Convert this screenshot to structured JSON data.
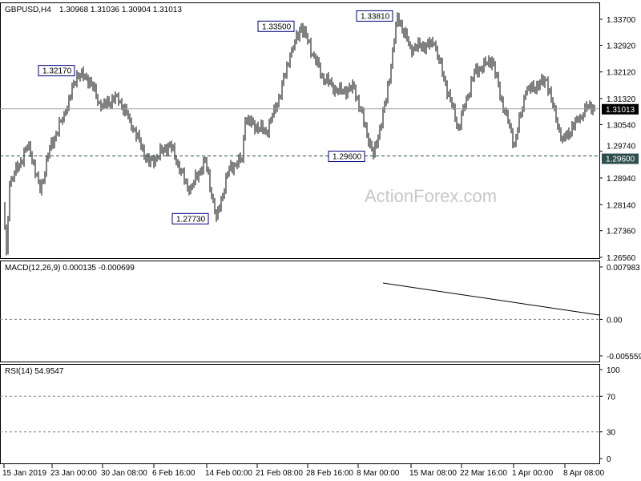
{
  "header": {
    "symbol": "GBPUSD,H4",
    "ohlc": "1.30968 1.31036 1.30904 1.31013"
  },
  "watermark": "ActionForex.com",
  "colors": {
    "bars": "#000000",
    "ma": "#ff0000",
    "macd": "#000080",
    "signal": "#a0a0a0",
    "rsi": "#1e90ff",
    "current_price_bg": "#000000",
    "level_bg": "#2f4f4f"
  },
  "chart_data": [
    {
      "type": "ohlc-bar",
      "panel": "price",
      "y_ticks": [
        "1.33700",
        "1.32920",
        "1.32120",
        "1.31320",
        "1.30540",
        "1.29740",
        "1.28940",
        "1.28140",
        "1.27360",
        "1.26560"
      ],
      "ylim": [
        1.2656,
        1.337
      ],
      "x_ticks": [
        "15 Jan 2019",
        "23 Jan 00:00",
        "30 Jan 08:00",
        "6 Feb 16:00",
        "14 Feb 00:00",
        "21 Feb 08:00",
        "28 Feb 16:00",
        "8 Mar 00:00",
        "15 Mar 08:00",
        "22 Mar 16:00",
        "1 Apr 00:00",
        "8 Apr 08:00"
      ],
      "swing_points_bar_price": [
        [
          1,
          1.2816
        ],
        [
          3,
          1.2672
        ],
        [
          5,
          1.2876
        ],
        [
          17,
          1.2996
        ],
        [
          24,
          1.2852
        ],
        [
          30,
          1.2984
        ],
        [
          40,
          1.3092
        ],
        [
          47,
          1.3207
        ],
        [
          55,
          1.3188
        ],
        [
          62,
          1.3104
        ],
        [
          72,
          1.314
        ],
        [
          80,
          1.3068
        ],
        [
          92,
          1.2936
        ],
        [
          105,
          1.2996
        ],
        [
          117,
          1.2852
        ],
        [
          127,
          1.2948
        ],
        [
          134,
          1.2773
        ],
        [
          142,
          1.2924
        ],
        [
          150,
          1.2948
        ],
        [
          152,
          1.3068
        ],
        [
          165,
          1.3032
        ],
        [
          172,
          1.3116
        ],
        [
          180,
          1.326
        ],
        [
          187,
          1.335
        ],
        [
          200,
          1.32
        ],
        [
          210,
          1.3152
        ],
        [
          220,
          1.3164
        ],
        [
          232,
          1.296
        ],
        [
          240,
          1.3128
        ],
        [
          247,
          1.3381
        ],
        [
          255,
          1.3284
        ],
        [
          270,
          1.3296
        ],
        [
          277,
          1.3176
        ],
        [
          285,
          1.3044
        ],
        [
          295,
          1.3212
        ],
        [
          306,
          1.3248
        ],
        [
          312,
          1.3128
        ],
        [
          320,
          1.2996
        ],
        [
          327,
          1.3152
        ],
        [
          340,
          1.3188
        ],
        [
          346,
          1.3068
        ],
        [
          350,
          1.3008
        ],
        [
          360,
          1.3068
        ],
        [
          367,
          1.3116
        ],
        [
          370,
          1.31013
        ]
      ],
      "moving_average": {
        "color": "red"
      },
      "annotations": [
        "1.32170",
        "1.33500",
        "1.33810",
        "1.29600",
        "1.27730"
      ],
      "current_price": "1.31013",
      "level_line": "1.29600"
    },
    {
      "type": "line",
      "panel": "macd",
      "title": "MACD(12,26,9) 0.000135 -0.000699",
      "y_ticks": [
        "0.007983",
        "0.00",
        "-0.005559"
      ],
      "ylim": [
        -0.005559,
        0.007983
      ]
    },
    {
      "type": "line",
      "panel": "rsi",
      "title": "RSI(14) 54.9547",
      "y_ticks": [
        "100",
        "70",
        "30",
        "0"
      ],
      "ylim": [
        0,
        100
      ],
      "levels": [
        70,
        30
      ]
    }
  ]
}
